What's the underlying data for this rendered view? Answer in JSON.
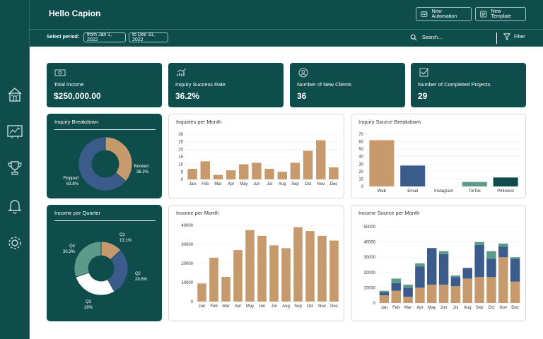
{
  "header": {
    "title": "Hello Capion",
    "new_automation_label": "New Automation",
    "new_template_label": "New Template"
  },
  "subbar": {
    "select_period_label": "Select period:",
    "from_date": "from Jan 1, 2022",
    "to_date": "to Dec 31, 2022",
    "search_placeholder": "Search...",
    "filter_label": "Filter"
  },
  "sidebar": {
    "items": [
      {
        "icon": "home-icon"
      },
      {
        "icon": "dashboard-icon"
      },
      {
        "icon": "trophy-icon"
      },
      {
        "icon": "bell-icon"
      },
      {
        "icon": "gear-icon"
      }
    ]
  },
  "kpis": [
    {
      "icon": "money-icon",
      "label": "Total Income",
      "value": "$250,000.00"
    },
    {
      "icon": "chart-up-icon",
      "label": "Inquiry Success Rate",
      "value": "36.2%"
    },
    {
      "icon": "user-icon",
      "label": "Number of New Clients",
      "value": "36"
    },
    {
      "icon": "checkbox-icon",
      "label": "Number of Completed Projects",
      "value": "29"
    }
  ],
  "colors": {
    "teal_dark": "#0f4c4c",
    "tan": "#c69a6d",
    "navy": "#3b5b8a",
    "green": "#5d9a8a",
    "white": "#ffffff"
  },
  "chart_data": [
    {
      "type": "pie",
      "title": "Inquiry Breakdown",
      "labels": [
        "Booked",
        "Flopped"
      ],
      "values": [
        36.2,
        63.8
      ],
      "value_labels": [
        "36.2%",
        "63.8%"
      ],
      "colors": [
        "#c69a6d",
        "#3b5b8a"
      ]
    },
    {
      "type": "bar",
      "title": "Inquiries per Month",
      "categories": [
        "Jan",
        "Feb",
        "Mar",
        "Apr",
        "May",
        "Jun",
        "Jul",
        "Aug",
        "Sep",
        "Oct",
        "Nov",
        "Dec"
      ],
      "values": [
        7,
        12,
        3,
        6,
        10,
        11,
        7,
        5,
        11,
        19,
        26,
        8
      ],
      "ylim": [
        0,
        30
      ],
      "yticks": [
        0,
        5,
        10,
        15,
        20,
        25,
        30
      ],
      "ytick_labels": [
        "0",
        "5",
        "10",
        "15",
        "20",
        "25",
        "30"
      ]
    },
    {
      "type": "bar",
      "title": "Inquiry Source Breakdown",
      "categories": [
        "Web",
        "Email",
        "Instagram",
        "TikTok",
        "Pinterest"
      ],
      "values": [
        62,
        28,
        1,
        6,
        12
      ],
      "colors": [
        "#c69a6d",
        "#3b5b8a",
        "#ffffff",
        "#5d9a8a",
        "#0f4c4c"
      ],
      "ylim": [
        0,
        70
      ],
      "yticks": [
        0,
        10,
        20,
        30,
        40,
        50,
        60,
        70
      ],
      "ytick_labels": [
        "0",
        "10",
        "20",
        "30",
        "40",
        "50",
        "60",
        "70"
      ]
    },
    {
      "type": "pie",
      "title": "Income per Quarter",
      "labels": [
        "Q1",
        "Q2",
        "Q3",
        "Q4"
      ],
      "values": [
        13.1,
        28.6,
        28,
        30.3
      ],
      "value_labels": [
        "13.1%",
        "28.6%",
        "28%",
        "30.3%"
      ],
      "colors": [
        "#c69a6d",
        "#3b5b8a",
        "#ffffff",
        "#5d9a8a"
      ]
    },
    {
      "type": "bar",
      "title": "Income per Month",
      "categories": [
        "Jan",
        "Feb",
        "Mar",
        "Apr",
        "May",
        "Jun",
        "Jul",
        "Aug",
        "Sep",
        "Oct",
        "Nov",
        "Dec"
      ],
      "values": [
        9500,
        23000,
        13000,
        27000,
        37500,
        34500,
        29500,
        28000,
        39000,
        37000,
        34500,
        32000
      ],
      "ylim": [
        0,
        40000
      ],
      "yticks": [
        0,
        10000,
        20000,
        30000,
        40000
      ],
      "ytick_labels": [
        "0",
        "10000",
        "20000",
        "30000",
        "40000"
      ]
    },
    {
      "type": "bar",
      "stacked": true,
      "title": "Income Source per Month",
      "categories": [
        "Jan",
        "Feb",
        "Mar",
        "Apr",
        "May",
        "Jun",
        "Jul",
        "Aug",
        "Sep",
        "Oct",
        "Nov",
        "Dec"
      ],
      "series": [
        {
          "color": "#c69a6d",
          "values": [
            5000,
            8000,
            4000,
            10000,
            12000,
            12000,
            11000,
            16000,
            17000,
            17000,
            30000,
            14000
          ]
        },
        {
          "color": "#3b5b8a",
          "values": [
            2000,
            5000,
            6000,
            14000,
            24000,
            20000,
            6000,
            7000,
            21000,
            12000,
            7000,
            15000
          ]
        },
        {
          "color": "#5d9a8a",
          "values": [
            1000,
            3000,
            2000,
            2000,
            0,
            2000,
            1000,
            0,
            2000,
            5000,
            2000,
            1000
          ]
        }
      ],
      "ylim": [
        0,
        50000
      ],
      "yticks": [
        0,
        10000,
        20000,
        30000,
        40000,
        50000
      ],
      "ytick_labels": [
        "0",
        "10000",
        "20000",
        "30000",
        "40000",
        "50000"
      ]
    }
  ]
}
